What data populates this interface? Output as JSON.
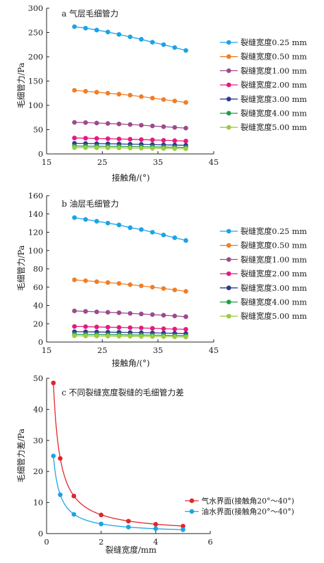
{
  "chart_data": [
    {
      "type": "line",
      "title": "a 气层毛细管力",
      "xlabel": "接触角/(°)",
      "ylabel": "毛细管力/Pa",
      "xlim": [
        15,
        45
      ],
      "ylim": [
        0,
        300
      ],
      "xticks": [
        "15",
        "25",
        "35",
        "45"
      ],
      "yticks": [
        "0",
        "50",
        "100",
        "150",
        "200",
        "250",
        "300"
      ],
      "x": [
        20,
        22,
        24,
        26,
        28,
        30,
        32,
        34,
        36,
        38,
        40
      ],
      "legend": "right",
      "series": [
        {
          "name": "裂缝宽度0.25 mm",
          "color": "#1aa3e8",
          "values": [
            262,
            259,
            255,
            251,
            246,
            241,
            236,
            230,
            225,
            219,
            213
          ]
        },
        {
          "name": "裂缝宽度0.50 mm",
          "color": "#f07e26",
          "values": [
            131,
            129,
            127,
            125,
            123,
            121,
            118,
            115,
            112,
            109,
            106
          ]
        },
        {
          "name": "裂缝宽度1.00 mm",
          "color": "#9b4a8c",
          "values": [
            65,
            64.5,
            63.6,
            62.7,
            61.7,
            60.6,
            59.2,
            57.6,
            56.1,
            54.6,
            53.2
          ]
        },
        {
          "name": "裂缝宽度2.00 mm",
          "color": "#e6197d",
          "values": [
            32.8,
            32.3,
            31.8,
            31.3,
            30.8,
            30.2,
            29.5,
            28.8,
            28,
            27.3,
            26.5
          ]
        },
        {
          "name": "裂缝宽度3.00 mm",
          "color": "#2b3990",
          "values": [
            21.8,
            21.5,
            21.2,
            20.9,
            20.5,
            20.1,
            19.7,
            19.2,
            18.7,
            18.2,
            17.7
          ]
        },
        {
          "name": "裂缝宽度4.00 mm",
          "color": "#1f9e4a",
          "values": [
            16.4,
            16.1,
            15.9,
            15.7,
            15.4,
            15.1,
            14.8,
            14.4,
            14,
            13.7,
            13.3
          ]
        },
        {
          "name": "裂缝宽度5.00 mm",
          "color": "#9ccc3d",
          "values": [
            13.1,
            12.9,
            12.7,
            12.5,
            12.3,
            12.1,
            11.8,
            11.5,
            11.2,
            10.9,
            10.6
          ]
        }
      ]
    },
    {
      "type": "line",
      "title": "b 油层毛细管力",
      "xlabel": "接触角/(°)",
      "ylabel": "毛细管力/Pa",
      "xlim": [
        15,
        45
      ],
      "ylim": [
        0,
        160
      ],
      "xticks": [
        "15",
        "25",
        "35",
        "45"
      ],
      "yticks": [
        "0",
        "20",
        "40",
        "60",
        "80",
        "100",
        "120",
        "140",
        "160"
      ],
      "x": [
        20,
        22,
        24,
        26,
        28,
        30,
        32,
        34,
        36,
        38,
        40
      ],
      "legend": "right",
      "series": [
        {
          "name": "裂缝宽度0.25 mm",
          "color": "#1aa3e8",
          "values": [
            136,
            134,
            132,
            130,
            128,
            125,
            123,
            120,
            117,
            114,
            111
          ]
        },
        {
          "name": "裂缝宽度0.50 mm",
          "color": "#f07e26",
          "values": [
            68,
            67,
            66,
            65,
            64,
            62.7,
            61.4,
            60,
            58.5,
            57,
            55.4
          ]
        },
        {
          "name": "裂缝宽度1.00 mm",
          "color": "#9b4a8c",
          "values": [
            34,
            33.5,
            33,
            32.5,
            32,
            31.3,
            30.7,
            30,
            29.3,
            28.5,
            27.7
          ]
        },
        {
          "name": "裂缝宽度2.00 mm",
          "color": "#e6197d",
          "values": [
            17,
            16.8,
            16.5,
            16.2,
            16,
            15.7,
            15.4,
            15,
            14.6,
            14.2,
            13.9
          ]
        },
        {
          "name": "裂缝宽度3.00 mm",
          "color": "#2b3990",
          "values": [
            11.3,
            11.2,
            11,
            10.8,
            10.7,
            10.4,
            10.2,
            10,
            9.8,
            9.5,
            9.2
          ]
        },
        {
          "name": "裂缝宽度4.00 mm",
          "color": "#1f9e4a",
          "values": [
            8.5,
            8.4,
            8.3,
            8.1,
            8,
            7.8,
            7.7,
            7.5,
            7.3,
            7.1,
            6.9
          ]
        },
        {
          "name": "裂缝宽度5.00 mm",
          "color": "#9ccc3d",
          "values": [
            6.8,
            6.7,
            6.6,
            6.5,
            6.4,
            6.3,
            6.1,
            6,
            5.9,
            5.7,
            5.5
          ]
        }
      ]
    },
    {
      "type": "line",
      "title": "c 不同裂缝宽度裂缝的毛细管力差",
      "xlabel": "裂缝宽度/mm",
      "ylabel": "毛细管力差/Pa",
      "xlim": [
        0,
        6
      ],
      "ylim": [
        0,
        50
      ],
      "xticks": [
        "0",
        "2",
        "4",
        "6"
      ],
      "yticks": [
        "0",
        "10",
        "20",
        "30",
        "40",
        "50"
      ],
      "legend": "bottom-right",
      "series": [
        {
          "name": "气水界面(接触角20°～40°)",
          "color": "#e3242b",
          "x": [
            0.25,
            0.5,
            1,
            2,
            3,
            4,
            5
          ],
          "values": [
            48.5,
            24.2,
            12.1,
            6.0,
            4.0,
            3.0,
            2.4
          ]
        },
        {
          "name": "油水界面(接触角20°～40°)",
          "color": "#1aa3e8",
          "x": [
            0.25,
            0.5,
            1,
            2,
            3,
            4,
            5
          ],
          "values": [
            25,
            12.5,
            6.2,
            3.1,
            2.1,
            1.6,
            1.25
          ]
        }
      ]
    }
  ]
}
